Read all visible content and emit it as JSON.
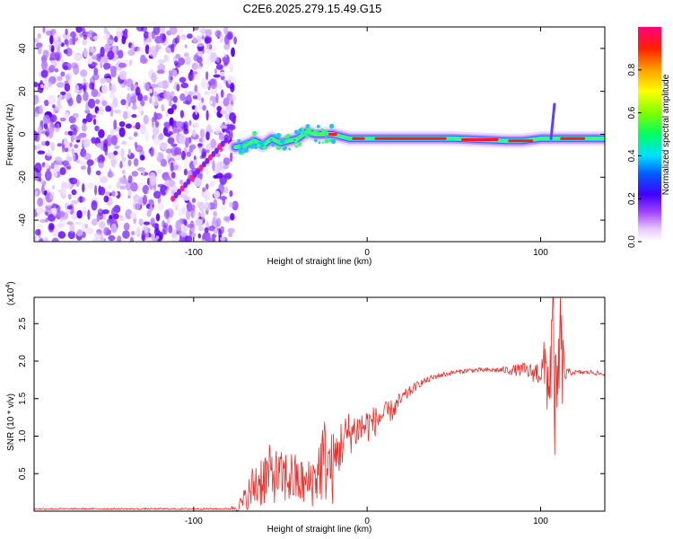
{
  "title": "C2E6.2025.279.15.49.G15",
  "chart_data": [
    {
      "type": "heatmap",
      "name": "spectrogram",
      "xlabel": "Height of straight line (km)",
      "ylabel": "Frequency (Hz)",
      "xlim": [
        -192,
        137
      ],
      "ylim": [
        -50,
        50
      ],
      "xticks": [
        -100,
        0,
        100
      ],
      "yticks": [
        -40,
        -20,
        0,
        20,
        40
      ],
      "noise_region_x": [
        -192,
        -76
      ],
      "ridge": {
        "x": [
          -76,
          -70,
          -65,
          -60,
          -55,
          -50,
          -45,
          -40,
          -35,
          -30,
          -25,
          -20,
          -15,
          -10,
          0,
          20,
          50,
          80,
          90,
          100,
          105,
          110,
          120,
          137
        ],
        "y": [
          -6,
          -5,
          -3,
          -5,
          -2,
          -4,
          -3,
          -2,
          1,
          0,
          0,
          0,
          -1,
          -2,
          -2,
          -2,
          -2,
          -3,
          -3,
          -2,
          -2,
          -2,
          -2,
          -2
        ]
      },
      "colorbar": {
        "label": "Normalized spectral amplitude",
        "range": [
          0.0,
          1.0
        ],
        "ticks": [
          "0.0",
          "0.2",
          "0.4",
          "0.6",
          "0.8"
        ]
      }
    },
    {
      "type": "line",
      "name": "snr",
      "xlabel": "Height of straight line (km)",
      "ylabel": "SNR (10 * v/v)",
      "scale_note": "(x10",
      "scale_exp": "4",
      "xlim": [
        -192,
        137
      ],
      "ylim": [
        0,
        2.85
      ],
      "xticks": [
        -100,
        0,
        100
      ],
      "yticks": [
        "0.5",
        "1.0",
        "1.5",
        "2.0",
        "2.5"
      ],
      "color": "#e8302c",
      "envelope": {
        "x": [
          -192,
          -80,
          -75,
          -70,
          -65,
          -60,
          -55,
          -50,
          -45,
          -40,
          -35,
          -30,
          -25,
          -20,
          -15,
          -10,
          -5,
          0,
          5,
          10,
          15,
          20,
          30,
          40,
          50,
          60,
          70,
          80,
          90,
          95,
          100,
          103,
          105,
          107,
          109,
          111,
          113,
          115,
          120,
          130,
          137
        ],
        "y": [
          0.03,
          0.03,
          0.05,
          0.15,
          0.35,
          0.45,
          0.5,
          0.45,
          0.45,
          0.4,
          0.35,
          0.45,
          0.7,
          0.55,
          0.9,
          1.05,
          1.1,
          1.15,
          1.2,
          1.3,
          1.35,
          1.5,
          1.7,
          1.8,
          1.85,
          1.88,
          1.88,
          1.88,
          1.88,
          1.85,
          1.85,
          1.9,
          1.7,
          2.4,
          1.0,
          2.3,
          1.85,
          1.85,
          1.85,
          1.85,
          1.82
        ]
      },
      "spread": {
        "x": [
          -192,
          -80,
          -75,
          -70,
          -65,
          -60,
          -55,
          -50,
          -45,
          -40,
          -35,
          -30,
          -25,
          -20,
          -15,
          -10,
          -5,
          0,
          5,
          10,
          15,
          20,
          30,
          40,
          50,
          60,
          70,
          80,
          90,
          95,
          100,
          103,
          105,
          107,
          109,
          111,
          113,
          115,
          120,
          130,
          137
        ],
        "y": [
          0.01,
          0.01,
          0.05,
          0.2,
          0.35,
          0.4,
          0.4,
          0.35,
          0.4,
          0.35,
          0.3,
          0.4,
          0.6,
          0.5,
          0.35,
          0.3,
          0.25,
          0.25,
          0.2,
          0.15,
          0.15,
          0.1,
          0.05,
          0.04,
          0.03,
          0.03,
          0.03,
          0.05,
          0.1,
          0.12,
          0.2,
          0.5,
          0.6,
          0.9,
          1.0,
          0.9,
          0.5,
          0.05,
          0.03,
          0.03,
          0.03
        ]
      }
    }
  ]
}
